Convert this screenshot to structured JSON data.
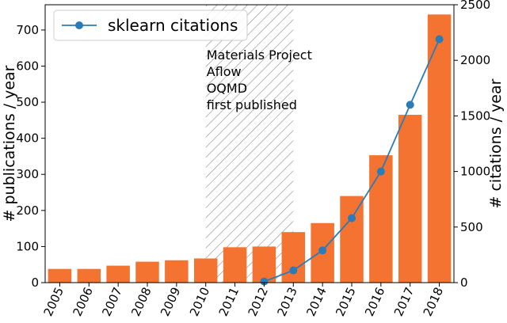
{
  "chart_data": {
    "type": "bar",
    "categories": [
      "2005",
      "2006",
      "2007",
      "2008",
      "2009",
      "2010",
      "2011",
      "2012",
      "2013",
      "2014",
      "2015",
      "2016",
      "2017",
      "2018"
    ],
    "series": [
      {
        "values": [
          38,
          38,
          47,
          58,
          62,
          67,
          98,
          100,
          140,
          165,
          240,
          353,
          465,
          743
        ],
        "color": "#f47330",
        "axis": "left",
        "type": "bar"
      },
      {
        "name": "sklearn citations",
        "x": [
          "2012",
          "2013",
          "2014",
          "2015",
          "2016",
          "2017",
          "2018"
        ],
        "values": [
          10,
          110,
          290,
          580,
          1000,
          1600,
          2190
        ],
        "color": "#2b7bb9",
        "axis": "right",
        "type": "line",
        "marker": "circle"
      }
    ],
    "ylabel": "# publications / year",
    "ylabel_right": "# citations / year",
    "ylim": [
      0,
      770
    ],
    "ylim_right": [
      0,
      2500
    ],
    "yticks": [
      0,
      100,
      200,
      300,
      400,
      500,
      600,
      700
    ],
    "yticks_right": [
      0,
      500,
      1000,
      1500,
      2000,
      2500
    ],
    "legend": {
      "position": "top-left",
      "entries": [
        "sklearn citations"
      ]
    },
    "shaded_region": {
      "from": "2010",
      "to": "2013",
      "pattern": "diagonal-hatch",
      "annotation": [
        "Materials Project",
        "Aflow",
        "OQMD",
        "first published"
      ]
    },
    "grid": false
  }
}
